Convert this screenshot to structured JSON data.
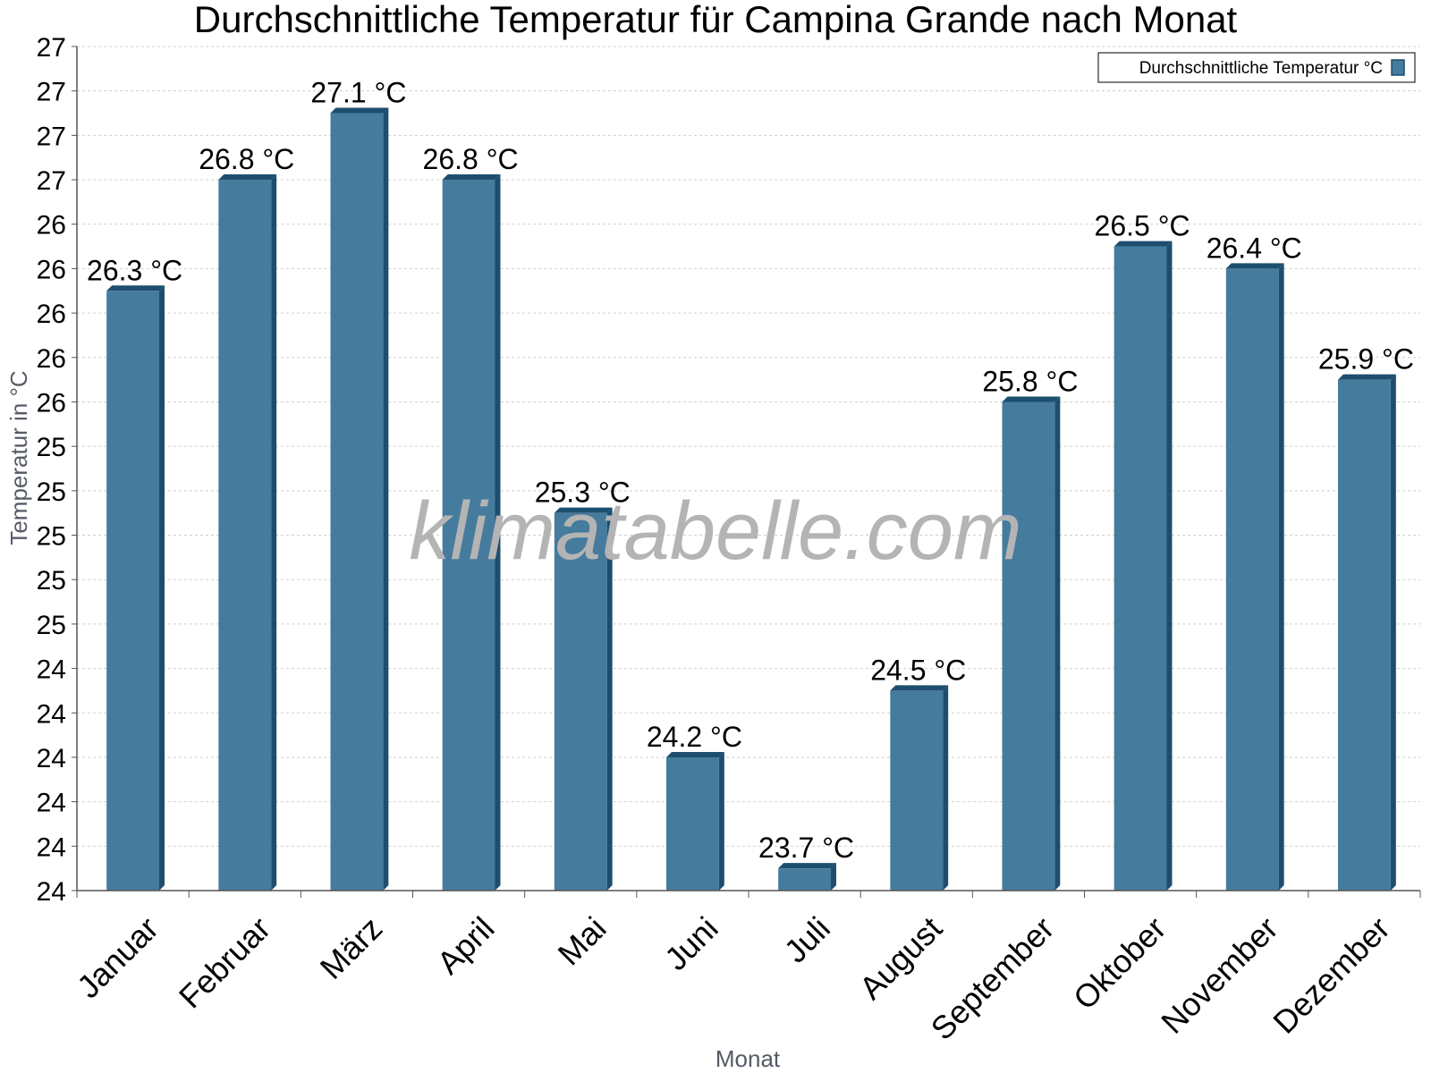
{
  "chart_data": {
    "type": "bar",
    "title": "Durchschnittliche Temperatur für Campina Grande nach Monat",
    "xlabel": "Monat",
    "ylabel": "Temperatur in °C",
    "categories": [
      "Januar",
      "Februar",
      "März",
      "April",
      "Mai",
      "Juni",
      "Juli",
      "August",
      "September",
      "Oktober",
      "November",
      "Dezember"
    ],
    "series": [
      {
        "name": "Durchschnittliche Temperatur °C",
        "values": [
          26.3,
          26.8,
          27.1,
          26.8,
          25.3,
          24.2,
          23.7,
          24.5,
          25.8,
          26.5,
          26.4,
          25.9
        ],
        "value_labels": [
          "26.3 °C",
          "26.8 °C",
          "27.1 °C",
          "26.8 °C",
          "25.3 °C",
          "24.2 °C",
          "23.7 °C",
          "24.5 °C",
          "25.8 °C",
          "26.5 °C",
          "26.4 °C",
          "25.9 °C"
        ]
      }
    ],
    "ylim": [
      23.6,
      27.4
    ],
    "ytick_values": [
      23.6,
      23.8,
      24.0,
      24.2,
      24.4,
      24.6,
      24.8,
      25.0,
      25.2,
      25.4,
      25.6,
      25.8,
      26.0,
      26.2,
      26.4,
      26.6,
      26.8,
      27.0,
      27.2,
      27.4
    ],
    "ytick_labels": [
      "24",
      "24",
      "24",
      "24",
      "24",
      "24",
      "25",
      "25",
      "25",
      "25",
      "25",
      "26",
      "26",
      "26",
      "26",
      "26",
      "27",
      "27",
      "27",
      "27"
    ],
    "grid": true,
    "legend_position": "top-right",
    "watermark": "klimatabelle.com",
    "colors": {
      "bar": "#457b9d",
      "bar_side": "#1d4e6e",
      "bar_top": "#1d4e6e",
      "grid": "#cfcfcf",
      "axis": "#555555"
    }
  }
}
